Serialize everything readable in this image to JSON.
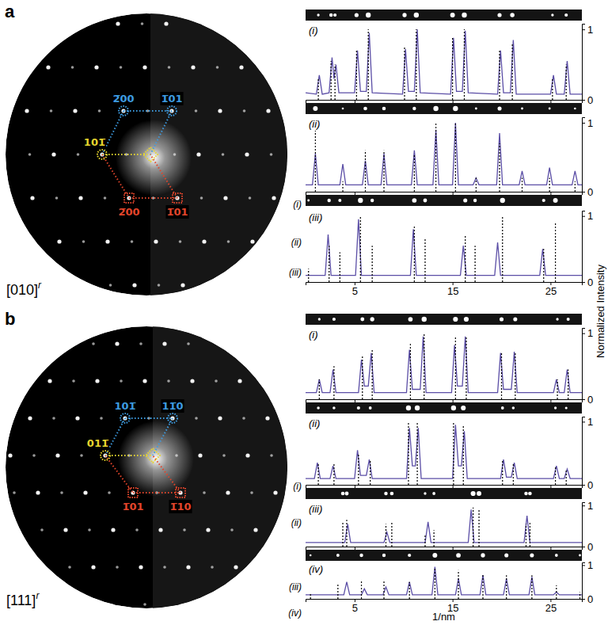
{
  "y_axis_title": "Normalized Intensity",
  "panels": [
    {
      "letter": "a",
      "zone_axis": "[010]",
      "zone_superscript": "r",
      "spot_labels": [
        {
          "text": "2̅00",
          "color": "#3d9be0"
        },
        {
          "text": "1̅01",
          "color": "#3d9be0"
        },
        {
          "text": "101̅",
          "color": "#e6d52e"
        },
        {
          "text": "2̅00",
          "color": "#e2452b"
        },
        {
          "text": "1̅01",
          "color": "#e2452b"
        }
      ],
      "scan_labels": [
        "(i)",
        "(ii)",
        "(iii)"
      ]
    },
    {
      "letter": "b",
      "zone_axis": "[111]",
      "zone_superscript": "r",
      "spot_labels": [
        {
          "text": "101̅",
          "color": "#3d9be0"
        },
        {
          "text": "11̅0",
          "color": "#3d9be0"
        },
        {
          "text": "011̅",
          "color": "#e6d52e"
        },
        {
          "text": "1̅01",
          "color": "#e2452b"
        },
        {
          "text": "1̅10",
          "color": "#e2452b"
        }
      ],
      "scan_labels": [
        "(i)",
        "(ii)",
        "(iii)",
        "(iv)"
      ]
    }
  ],
  "chart_data": [
    {
      "type": "line",
      "panel": "a",
      "label": "(i)",
      "xlim": [
        0,
        28.2
      ],
      "xticks": [
        5,
        15,
        25
      ],
      "ylim": [
        0,
        1.08
      ],
      "yticks": [
        0,
        1
      ],
      "tick_labels": "y",
      "series": [
        {
          "type": "line",
          "color": "#5b4ea6",
          "line_style": "solid",
          "x": [
            0,
            1.1,
            1.4,
            1.7,
            2.4,
            2.7,
            2.9,
            3.1,
            3.4,
            5.0,
            5.3,
            5.6,
            6.2,
            6.5,
            6.8,
            9.9,
            10.2,
            10.5,
            11.1,
            11.4,
            11.7,
            14.8,
            15.1,
            15.4,
            16.0,
            16.3,
            16.6,
            19.6,
            19.9,
            20.2,
            20.9,
            21.2,
            21.5,
            25.0,
            25.3,
            25.6,
            26.4,
            26.7,
            27.0,
            28.2
          ],
          "values": [
            0.1,
            0.08,
            0.35,
            0.08,
            0.1,
            0.6,
            0.3,
            0.5,
            0.1,
            0.1,
            0.7,
            0.12,
            0.12,
            0.95,
            0.1,
            0.08,
            0.72,
            0.12,
            0.12,
            1.0,
            0.1,
            0.08,
            0.88,
            0.12,
            0.12,
            0.98,
            0.1,
            0.08,
            0.7,
            0.1,
            0.1,
            0.85,
            0.08,
            0.08,
            0.35,
            0.08,
            0.08,
            0.55,
            0.08,
            0.08
          ]
        },
        {
          "type": "stem",
          "color": "#000000",
          "line_style": "dotted",
          "x": [
            1.3,
            2.6,
            3.0,
            5.2,
            6.4,
            10.1,
            11.3,
            15.0,
            16.2,
            19.8,
            21.1,
            25.2,
            26.6
          ],
          "values": [
            0.3,
            0.55,
            0.5,
            0.72,
            1.0,
            0.75,
            1.0,
            0.9,
            1.0,
            0.72,
            0.8,
            0.3,
            0.5
          ]
        }
      ]
    },
    {
      "type": "line",
      "panel": "a",
      "label": "(ii)",
      "xlim": [
        0,
        28.2
      ],
      "xticks": [
        5,
        15,
        25
      ],
      "ylim": [
        0,
        1.08
      ],
      "yticks": [
        0,
        1
      ],
      "tick_labels": "y",
      "series": [
        {
          "type": "line",
          "color": "#5b4ea6",
          "line_style": "solid",
          "x": [
            0,
            0.7,
            1.0,
            1.3,
            3.5,
            3.8,
            4.1,
            5.8,
            6.1,
            6.4,
            7.7,
            8.0,
            8.3,
            10.8,
            11.1,
            11.4,
            13.0,
            13.3,
            13.6,
            15.0,
            15.3,
            15.6,
            17.1,
            17.4,
            17.7,
            19.5,
            19.8,
            20.1,
            21.8,
            22.1,
            22.4,
            24.6,
            24.9,
            25.2,
            27.2,
            27.5,
            27.8,
            28.2
          ],
          "values": [
            0.1,
            0.1,
            0.55,
            0.1,
            0.1,
            0.4,
            0.1,
            0.1,
            0.45,
            0.1,
            0.1,
            0.55,
            0.1,
            0.1,
            0.6,
            0.1,
            0.1,
            0.9,
            0.1,
            0.1,
            1.0,
            0.1,
            0.1,
            0.2,
            0.1,
            0.1,
            0.85,
            0.1,
            0.1,
            0.3,
            0.1,
            0.1,
            0.35,
            0.1,
            0.1,
            0.3,
            0.1,
            0.1
          ]
        },
        {
          "type": "stem",
          "color": "#000000",
          "line_style": "dotted",
          "x": [
            1.0,
            3.8,
            6.1,
            8.0,
            11.1,
            13.3,
            15.3,
            17.4,
            19.8,
            22.1,
            24.9,
            27.5
          ],
          "values": [
            0.9,
            0.15,
            0.6,
            0.6,
            0.55,
            1.0,
            1.0,
            0.2,
            0.7,
            0.2,
            0.2,
            0.15
          ]
        }
      ]
    },
    {
      "type": "line",
      "panel": "a",
      "label": "(iii)",
      "xlim": [
        0,
        28.2
      ],
      "xticks": [
        5,
        15,
        25
      ],
      "ylim": [
        0,
        1.08
      ],
      "yticks": [
        0,
        1
      ],
      "series": [
        {
          "type": "line",
          "color": "#5b4ea6",
          "line_style": "solid",
          "x": [
            0,
            2.0,
            2.3,
            2.6,
            5.1,
            5.4,
            5.7,
            10.7,
            11.0,
            11.3,
            15.8,
            16.1,
            16.4,
            19.3,
            19.6,
            19.9,
            23.9,
            24.2,
            24.5,
            28.2
          ],
          "values": [
            0.1,
            0.1,
            0.72,
            0.1,
            0.1,
            0.95,
            0.1,
            0.1,
            0.8,
            0.1,
            0.1,
            0.55,
            0.1,
            0.1,
            0.6,
            0.1,
            0.1,
            0.5,
            0.1,
            0.1
          ]
        },
        {
          "type": "stem",
          "color": "#000000",
          "line_style": "dotted",
          "x": [
            0.3,
            2.4,
            3.5,
            5.6,
            6.8,
            11.1,
            12.2,
            16.3,
            17.3,
            20.1,
            24.3,
            25.5
          ],
          "values": [
            0.2,
            0.55,
            0.45,
            1.0,
            0.55,
            0.85,
            0.65,
            0.7,
            0.55,
            1.0,
            0.5,
            0.9
          ]
        }
      ]
    },
    {
      "type": "line",
      "panel": "b",
      "label": "(i)",
      "xlim": [
        0,
        28.2
      ],
      "xticks": [
        5,
        15,
        25
      ],
      "ylim": [
        0,
        1.08
      ],
      "yticks": [
        0,
        1
      ],
      "tick_labels": "y",
      "series": [
        {
          "type": "line",
          "color": "#5b4ea6",
          "line_style": "solid",
          "x": [
            0,
            1.1,
            1.4,
            1.7,
            2.5,
            2.8,
            3.1,
            5.4,
            5.7,
            6.0,
            6.4,
            6.7,
            7.0,
            10.3,
            10.6,
            10.9,
            11.7,
            12.0,
            12.3,
            14.9,
            15.2,
            15.5,
            16.0,
            16.3,
            16.6,
            19.6,
            19.9,
            20.2,
            21.0,
            21.3,
            21.6,
            25.3,
            25.6,
            25.9,
            26.4,
            26.7,
            27.0,
            28.2
          ],
          "values": [
            0.1,
            0.1,
            0.3,
            0.1,
            0.1,
            0.45,
            0.1,
            0.1,
            0.6,
            0.2,
            0.2,
            0.7,
            0.1,
            0.1,
            0.75,
            0.15,
            0.15,
            0.95,
            0.1,
            0.1,
            0.82,
            0.2,
            0.2,
            0.95,
            0.1,
            0.1,
            0.7,
            0.15,
            0.15,
            0.72,
            0.1,
            0.1,
            0.3,
            0.1,
            0.1,
            0.45,
            0.1,
            0.1
          ]
        },
        {
          "type": "stem",
          "color": "#000000",
          "line_style": "dotted",
          "x": [
            1.4,
            2.9,
            5.8,
            6.8,
            10.7,
            12.1,
            15.3,
            16.4,
            20.0,
            21.4,
            25.7,
            26.8
          ],
          "values": [
            0.3,
            0.5,
            0.65,
            0.75,
            0.85,
            1.0,
            0.95,
            0.95,
            0.72,
            0.7,
            0.3,
            0.45
          ]
        }
      ]
    },
    {
      "type": "line",
      "panel": "b",
      "label": "(ii)",
      "xlim": [
        0,
        28.2
      ],
      "xticks": [
        5,
        15,
        25
      ],
      "ylim": [
        0,
        1.08
      ],
      "yticks": [
        0,
        1
      ],
      "tick_labels": "y",
      "series": [
        {
          "type": "line",
          "color": "#5b4ea6",
          "line_style": "solid",
          "x": [
            0,
            0.9,
            1.2,
            1.5,
            2.5,
            2.8,
            3.1,
            5.0,
            5.3,
            5.6,
            6.2,
            6.5,
            6.8,
            10.3,
            10.6,
            10.9,
            11.2,
            11.5,
            11.8,
            15.0,
            15.3,
            15.6,
            15.9,
            16.2,
            16.5,
            19.9,
            20.2,
            20.5,
            21.0,
            21.3,
            21.6,
            25.3,
            25.6,
            25.9,
            26.4,
            26.7,
            27.0,
            28.2
          ],
          "values": [
            0.1,
            0.1,
            0.35,
            0.1,
            0.1,
            0.3,
            0.1,
            0.1,
            0.55,
            0.15,
            0.15,
            0.4,
            0.1,
            0.1,
            0.9,
            0.3,
            0.3,
            0.9,
            0.1,
            0.1,
            0.95,
            0.3,
            0.3,
            0.85,
            0.1,
            0.1,
            0.4,
            0.12,
            0.12,
            0.35,
            0.1,
            0.1,
            0.3,
            0.1,
            0.1,
            0.25,
            0.1,
            0.1
          ]
        },
        {
          "type": "stem",
          "color": "#000000",
          "line_style": "dotted",
          "x": [
            1.3,
            2.9,
            5.4,
            6.6,
            10.5,
            11.4,
            15.1,
            16.1,
            20.1,
            21.2,
            25.5,
            26.6
          ],
          "values": [
            0.35,
            0.35,
            0.5,
            0.4,
            1.0,
            1.0,
            1.0,
            0.95,
            0.4,
            0.35,
            0.3,
            0.25
          ]
        }
      ]
    },
    {
      "type": "line",
      "panel": "b",
      "label": "(iii)",
      "xlim": [
        0,
        28.2
      ],
      "xticks": [
        5,
        15,
        25
      ],
      "ylim": [
        0,
        1.08
      ],
      "yticks": [
        0,
        1
      ],
      "tick_labels": "y",
      "series": [
        {
          "type": "line",
          "color": "#5b4ea6",
          "line_style": "solid",
          "x": [
            0,
            4.0,
            4.3,
            4.6,
            8.0,
            8.3,
            8.6,
            12.2,
            12.5,
            12.8,
            16.6,
            16.9,
            17.2,
            22.3,
            22.6,
            22.9,
            28.2
          ],
          "values": [
            0.1,
            0.1,
            0.55,
            0.1,
            0.1,
            0.35,
            0.1,
            0.1,
            0.6,
            0.1,
            0.1,
            0.9,
            0.1,
            0.1,
            0.75,
            0.1,
            0.1
          ]
        },
        {
          "type": "stem",
          "color": "#000000",
          "line_style": "dotted",
          "x": [
            3.8,
            4.2,
            8.2,
            8.8,
            12.2,
            13.1,
            17.1,
            17.7,
            22.5,
            22.9
          ],
          "values": [
            0.6,
            0.65,
            0.55,
            0.6,
            0.3,
            0.4,
            0.95,
            0.9,
            0.55,
            0.6
          ]
        }
      ]
    },
    {
      "type": "line",
      "panel": "b",
      "label": "(iv)",
      "xlim": [
        0,
        28.2
      ],
      "xticks": [
        5,
        15,
        25
      ],
      "ylim": [
        0,
        1.08
      ],
      "yticks": [
        0,
        1
      ],
      "x_label": "1/nm",
      "series": [
        {
          "type": "line",
          "color": "#5b4ea6",
          "line_style": "solid",
          "x": [
            0,
            3.9,
            4.2,
            4.5,
            5.7,
            6.0,
            6.3,
            7.9,
            8.2,
            8.5,
            10.3,
            10.6,
            10.9,
            12.9,
            13.2,
            13.5,
            15.3,
            15.6,
            15.9,
            17.8,
            18.1,
            18.4,
            20.2,
            20.5,
            20.8,
            22.8,
            23.1,
            23.4,
            25.3,
            25.6,
            25.9,
            28.2
          ],
          "values": [
            0.12,
            0.12,
            0.5,
            0.12,
            0.12,
            0.3,
            0.12,
            0.12,
            0.35,
            0.12,
            0.12,
            0.5,
            0.12,
            0.12,
            0.95,
            0.12,
            0.12,
            0.6,
            0.12,
            0.12,
            0.7,
            0.12,
            0.12,
            0.6,
            0.12,
            0.12,
            0.65,
            0.12,
            0.12,
            0.2,
            0.12,
            0.12
          ]
        },
        {
          "type": "stem",
          "color": "#000000",
          "line_style": "dotted",
          "x": [
            0.5,
            3.3,
            5.7,
            8.0,
            10.6,
            13.2,
            15.6,
            18.1,
            20.5,
            23.1,
            25.6,
            28.0
          ],
          "values": [
            0.15,
            0.45,
            0.55,
            0.55,
            0.5,
            0.9,
            0.85,
            0.75,
            0.7,
            0.7,
            0.4,
            0.2
          ]
        }
      ]
    }
  ]
}
